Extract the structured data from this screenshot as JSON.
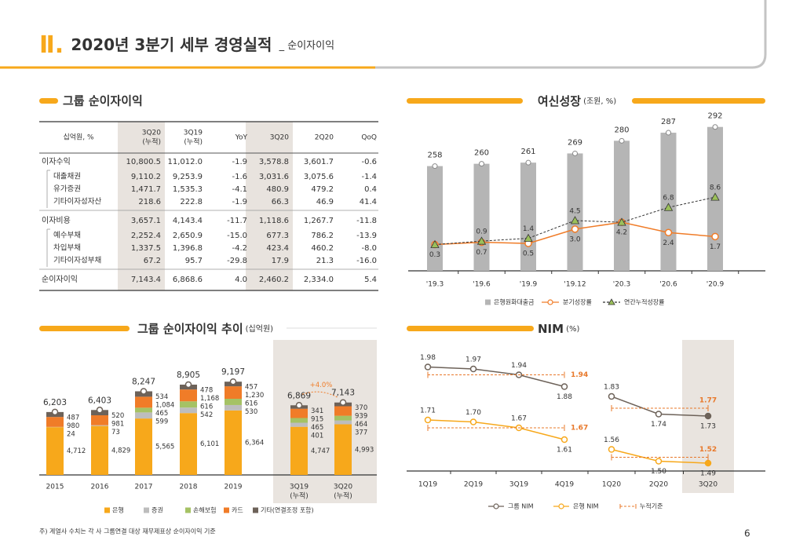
{
  "header": {
    "numeral": "Ⅱ.",
    "title": "2020년 3분기 세부 경영실적",
    "subtitle": "_ 순이자이익"
  },
  "table": {
    "title": "그룹 순이자이익",
    "columns": [
      [
        "십억원, %"
      ],
      [
        "3Q20",
        "(누적)"
      ],
      [
        "3Q19",
        "(누적)"
      ],
      [
        "YoY"
      ],
      [
        "3Q20"
      ],
      [
        "2Q20"
      ],
      [
        "QoQ"
      ]
    ],
    "groups": [
      {
        "label": "이자수익",
        "values": [
          "10,800.5",
          "11,012.0",
          "-1.9",
          "3,578.8",
          "3,601.7",
          "-0.6"
        ],
        "children": [
          {
            "label": "대출채권",
            "values": [
              "9,110.2",
              "9,253.9",
              "-1.6",
              "3,031.6",
              "3,075.6",
              "-1.4"
            ]
          },
          {
            "label": "유가증권",
            "values": [
              "1,471.7",
              "1,535.3",
              "-4.1",
              "480.9",
              "479.2",
              "0.4"
            ]
          },
          {
            "label": "기타이자성자산",
            "values": [
              "218.6",
              "222.8",
              "-1.9",
              "66.3",
              "46.9",
              "41.4"
            ]
          }
        ]
      },
      {
        "label": "이자비용",
        "values": [
          "3,657.1",
          "4,143.4",
          "-11.7",
          "1,118.6",
          "1,267.7",
          "-11.8"
        ],
        "children": [
          {
            "label": "예수부채",
            "values": [
              "2,252.4",
              "2,650.9",
              "-15.0",
              "677.3",
              "786.2",
              "-13.9"
            ]
          },
          {
            "label": "차입부채",
            "values": [
              "1,337.5",
              "1,396.8",
              "-4.2",
              "423.4",
              "460.2",
              "-8.0"
            ]
          },
          {
            "label": "기타이자성부채",
            "values": [
              "67.2",
              "95.7",
              "-29.8",
              "17.9",
              "21.3",
              "-16.0"
            ]
          }
        ]
      },
      {
        "label": "순이자이익",
        "values": [
          "7,143.4",
          "6,868.6",
          "4.0",
          "2,460.2",
          "2,334.0",
          "5.4"
        ]
      }
    ]
  },
  "chart_data": [
    {
      "type": "combo",
      "title": "여신성장",
      "unit": "(조원, %)",
      "categories": [
        "'19.3",
        "'19.6",
        "'19.9",
        "'19.12",
        "'20.3",
        "'20.6",
        "'20.9"
      ],
      "series": [
        {
          "name": "은행원화대출금",
          "type": "bar",
          "color": "#b5b5b5",
          "values": [
            258,
            260,
            261,
            269,
            280,
            287,
            292
          ]
        },
        {
          "name": "분기성장률",
          "type": "line",
          "marker": "circle",
          "color": "#f07c28",
          "axis": "y2",
          "values": [
            0.3,
            0.7,
            0.5,
            3.0,
            4.2,
            2.4,
            1.7
          ],
          "value_labels": [
            "0.3",
            "0.7",
            "0.5",
            "3.0",
            "4.2",
            "2.4",
            "1.7"
          ]
        },
        {
          "name": "연간누적성장률",
          "type": "line",
          "marker": "triangle",
          "dashed": true,
          "color": "#333333",
          "marker_color": "#9bc05a",
          "axis": "y2",
          "values": [
            0.3,
            0.9,
            1.4,
            4.5,
            4.2,
            6.8,
            8.6
          ],
          "value_labels": [
            null,
            "0.9",
            "1.4",
            "4.5",
            null,
            "6.8",
            "8.6"
          ]
        }
      ],
      "ylim": [
        167,
        300
      ],
      "y2lim": [
        -4.3,
        22.5
      ]
    },
    {
      "type": "stacked_bar",
      "title": "그룹 순이자이익 추이",
      "unit": "(십억원)",
      "categories": [
        [
          "2015"
        ],
        [
          "2016"
        ],
        [
          "2017"
        ],
        [
          "2018"
        ],
        [
          "2019"
        ],
        [
          "3Q19",
          "(누적)"
        ],
        [
          "3Q20",
          "(누적)"
        ]
      ],
      "series": [
        {
          "name": "은행",
          "color": "#f7a81b",
          "values": [
            4712,
            4829,
            5565,
            6101,
            6364,
            4747,
            4993
          ],
          "value_labels": [
            "4,712",
            "4,829",
            "5,565",
            "6,101",
            "6,364",
            "4,747",
            "4,993"
          ]
        },
        {
          "name": "증권",
          "color": "#bdbdbd",
          "values": [
            24,
            73,
            599,
            542,
            530,
            401,
            377
          ]
        },
        {
          "name": "손해보험",
          "color": "#a5c264",
          "values": [
            null,
            null,
            465,
            616,
            616,
            465,
            464
          ]
        },
        {
          "name": "카드",
          "color": "#f07c28",
          "values": [
            980,
            981,
            1084,
            1168,
            1230,
            915,
            939
          ],
          "value_labels": [
            "980",
            "981",
            "1,084",
            "1,168",
            "1,230",
            "915",
            "939"
          ]
        },
        {
          "name": "기타(연결조정 포함)",
          "color": "#6d6259",
          "values": [
            487,
            520,
            534,
            478,
            457,
            341,
            370
          ]
        }
      ],
      "totals": [
        6203,
        6403,
        8247,
        8905,
        9197,
        6869,
        7143
      ],
      "total_labels": [
        "6,203",
        "6,403",
        "8,247",
        "8,905",
        "9,197",
        "6,869",
        "7,143"
      ],
      "annotation": "+4.0%",
      "annotation_color": "#f07c28",
      "ylim": [
        0,
        12000
      ]
    },
    {
      "type": "line",
      "title": "NIM",
      "unit": "(%)",
      "categories": [
        "1Q19",
        "2Q19",
        "3Q19",
        "4Q19",
        "1Q20",
        "2Q20",
        "3Q20"
      ],
      "series": [
        {
          "name": "그룹 NIM",
          "color": "#6d6259",
          "values": [
            1.98,
            1.97,
            1.94,
            1.88,
            1.83,
            1.74,
            1.73
          ],
          "cumulative": [
            1.94,
            1.77
          ]
        },
        {
          "name": "은행 NIM",
          "color": "#f7a81b",
          "values": [
            1.71,
            1.7,
            1.67,
            1.61,
            1.56,
            1.5,
            1.49
          ],
          "value_labels": [
            "1.71",
            "1.70",
            "1.67",
            "1.61",
            "1.56",
            "1.50",
            "1.49"
          ],
          "cumulative": [
            1.67,
            1.52
          ]
        }
      ],
      "reference": {
        "name": "누적기준",
        "color": "#e8782a"
      },
      "ylim": [
        1.45,
        2.09
      ]
    }
  ],
  "footnote": "주) 계열사 수치는 각 사 그룹연결 대상 재무제표상 순이자이익 기준",
  "page_number": "6"
}
